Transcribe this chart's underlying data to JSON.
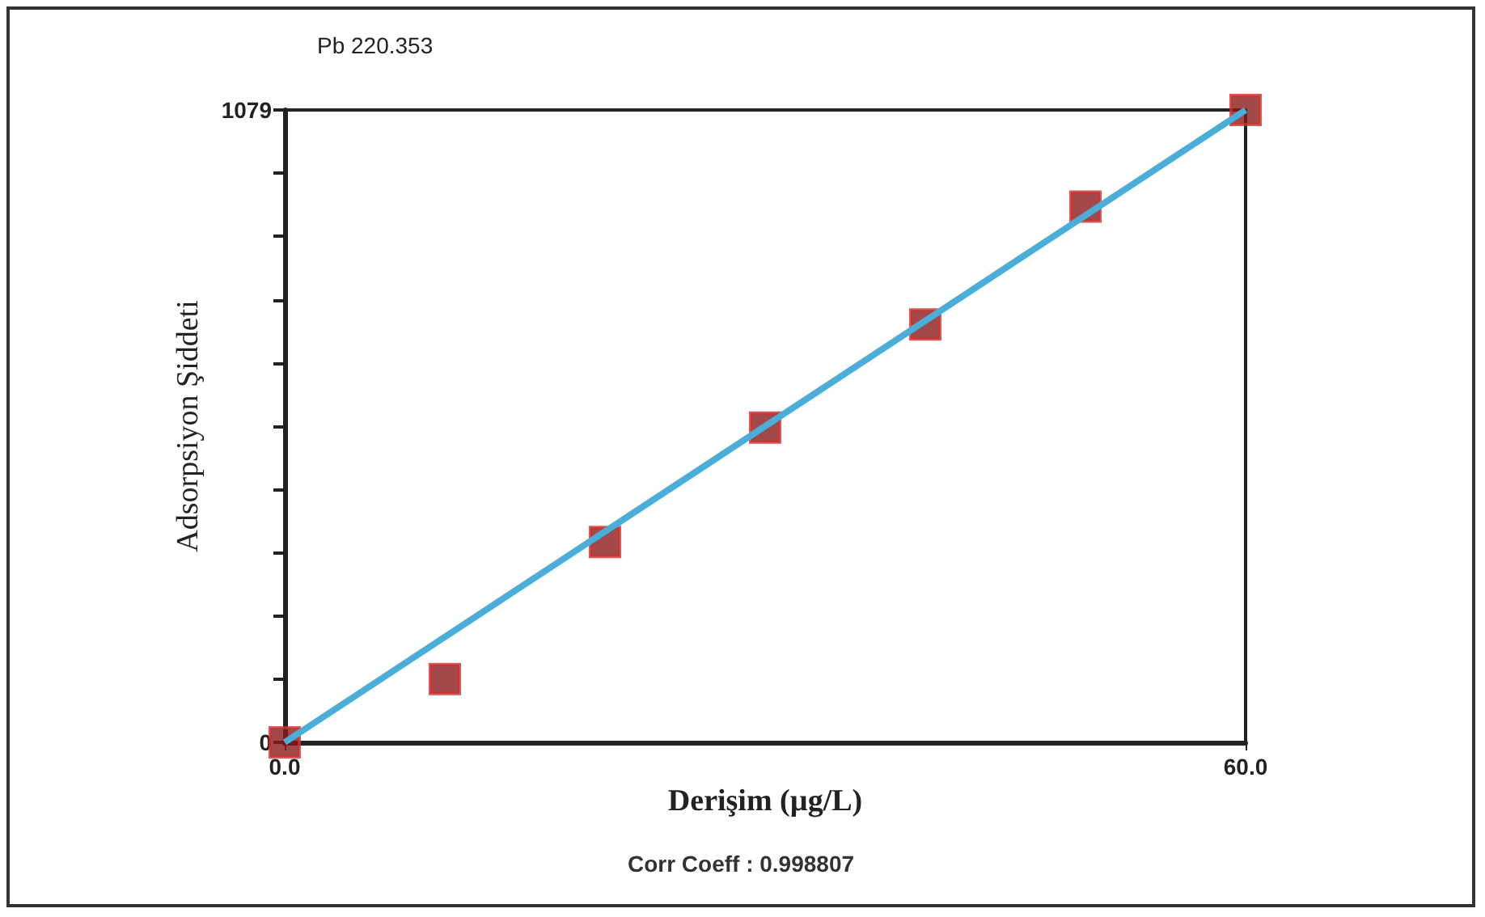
{
  "chart_data": {
    "type": "scatter",
    "title": "Pb 220.353",
    "xlabel": "Derişim (µg/L)",
    "ylabel": "Adsorpsiyon Şiddeti",
    "annotations": [
      "Corr Coeff : 0.998807"
    ],
    "xlim": [
      0,
      60
    ],
    "xticks": [
      {
        "value": 0,
        "label": "0.0"
      },
      {
        "value": 60,
        "label": "60.0"
      }
    ],
    "ylim": [
      0,
      1079
    ],
    "yticks": [
      0,
      {
        "value": 107.9,
        "label": null
      },
      {
        "value": 215.8,
        "label": null
      },
      {
        "value": 323.7,
        "label": null
      },
      {
        "value": 431.6,
        "label": null
      },
      {
        "value": 539.5,
        "label": null
      },
      {
        "value": 647.4,
        "label": null
      },
      {
        "value": 755.3,
        "label": null
      },
      {
        "value": 863.2,
        "label": null
      },
      {
        "value": 971.1,
        "label": null
      },
      1079
    ],
    "grid": false,
    "marker": "square",
    "series": [
      {
        "color": "#8b1a1a",
        "x": [
          0,
          10,
          20,
          30,
          40,
          50,
          60
        ],
        "values": [
          0,
          108,
          342,
          537,
          713,
          914,
          1079
        ]
      },
      {
        "type": "line",
        "color": "#4aaed8",
        "marker": "none",
        "x": [
          0,
          60
        ],
        "values": [
          0,
          1079
        ]
      }
    ]
  }
}
